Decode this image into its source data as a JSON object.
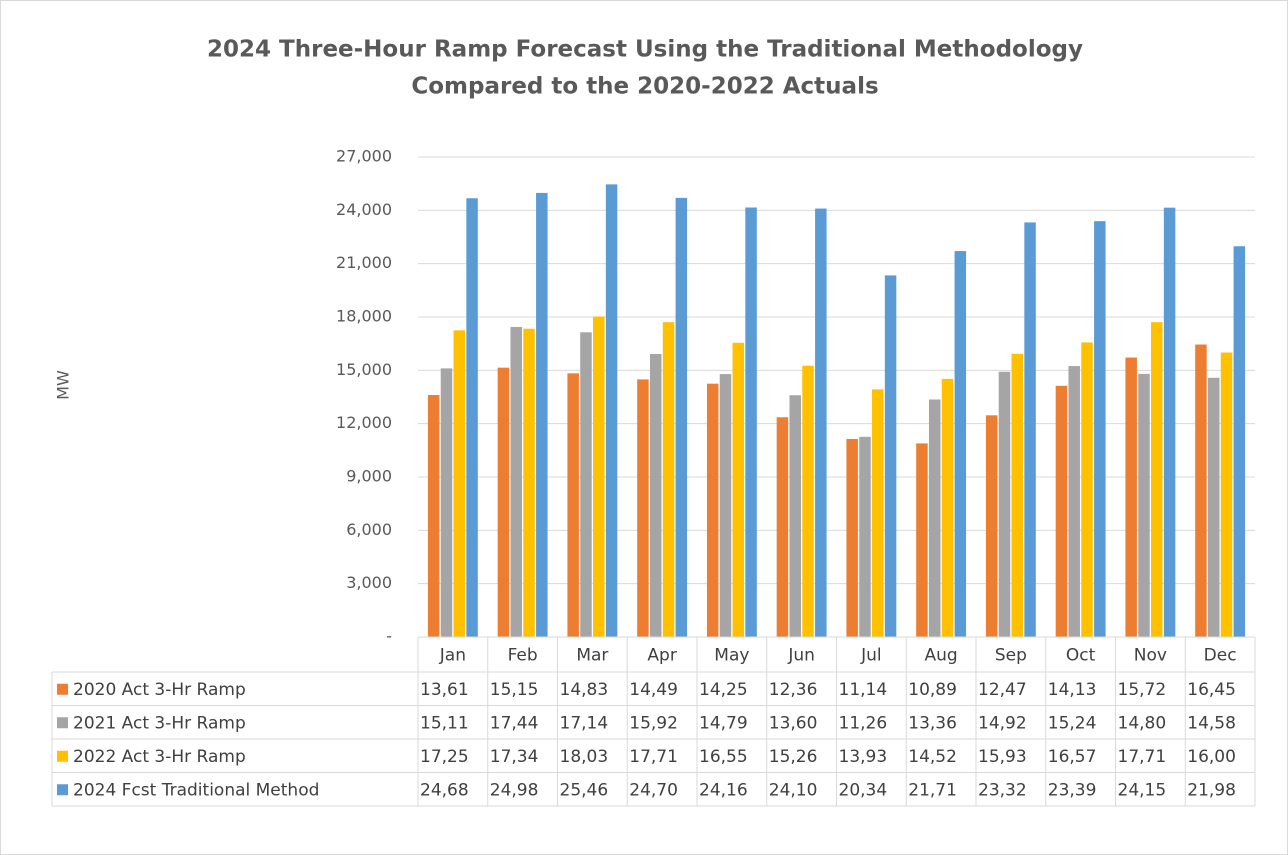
{
  "chart_data": {
    "type": "bar",
    "title": [
      "2024 Three-Hour Ramp Forecast Using the Traditional Methodology",
      "Compared to the 2020-2022 Actuals"
    ],
    "y_label": "MW",
    "categories": [
      "Jan",
      "Feb",
      "Mar",
      "Apr",
      "May",
      "Jun",
      "Jul",
      "Aug",
      "Sep",
      "Oct",
      "Nov",
      "Dec"
    ],
    "series": [
      {
        "name": "2020 Act 3-Hr Ramp",
        "color": "#ED7D31",
        "values": [
          13610,
          15150,
          14830,
          14490,
          14250,
          12360,
          11140,
          10890,
          12470,
          14130,
          15720,
          16450
        ],
        "value_labels": [
          "13,61",
          "15,15",
          "14,83",
          "14,49",
          "14,25",
          "12,36",
          "11,14",
          "10,89",
          "12,47",
          "14,13",
          "15,72",
          "16,45"
        ]
      },
      {
        "name": "2021 Act 3-Hr Ramp",
        "color": "#A5A5A5",
        "values": [
          15110,
          17440,
          17140,
          15920,
          14790,
          13600,
          11260,
          13360,
          14920,
          15240,
          14800,
          14580
        ],
        "value_labels": [
          "15,11",
          "17,44",
          "17,14",
          "15,92",
          "14,79",
          "13,60",
          "11,26",
          "13,36",
          "14,92",
          "15,24",
          "14,80",
          "14,58"
        ]
      },
      {
        "name": "2022 Act 3-Hr Ramp",
        "color": "#FFC000",
        "values": [
          17250,
          17340,
          18030,
          17710,
          16550,
          15260,
          13930,
          14520,
          15930,
          16570,
          17710,
          16000
        ],
        "value_labels": [
          "17,25",
          "17,34",
          "18,03",
          "17,71",
          "16,55",
          "15,26",
          "13,93",
          "14,52",
          "15,93",
          "16,57",
          "17,71",
          "16,00"
        ]
      },
      {
        "name": "2024 Fcst Traditional Method",
        "color": "#5B9BD5",
        "values": [
          24680,
          24980,
          25460,
          24700,
          24160,
          24100,
          20340,
          21710,
          23320,
          23390,
          24150,
          21980
        ],
        "value_labels": [
          "24,68",
          "24,98",
          "25,46",
          "24,70",
          "24,16",
          "24,10",
          "20,34",
          "21,71",
          "23,32",
          "23,39",
          "24,15",
          "21,98"
        ]
      }
    ],
    "ylim": [
      0,
      27000
    ],
    "yticks": [
      {
        "value": 0,
        "label": "-"
      },
      {
        "value": 3000,
        "label": "3,000"
      },
      {
        "value": 6000,
        "label": "6,000"
      },
      {
        "value": 9000,
        "label": "9,000"
      },
      {
        "value": 12000,
        "label": "12,000"
      },
      {
        "value": 15000,
        "label": "15,000"
      },
      {
        "value": 18000,
        "label": "18,000"
      },
      {
        "value": 21000,
        "label": "21,000"
      },
      {
        "value": 24000,
        "label": "24,000"
      },
      {
        "value": 27000,
        "label": "27,000"
      }
    ],
    "grid": true
  }
}
